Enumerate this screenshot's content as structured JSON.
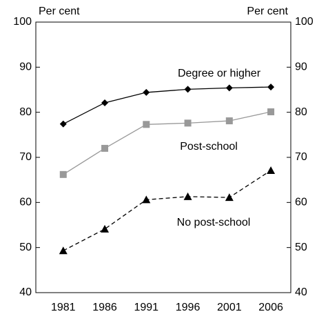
{
  "chart_data": {
    "type": "line",
    "left_axis_label": "Per cent",
    "right_axis_label": "Per cent",
    "x": [
      1981,
      1986,
      1991,
      1996,
      2001,
      2006
    ],
    "xlim": [
      1977.7,
      2008.4
    ],
    "xticks": [
      1981,
      1986,
      1991,
      1996,
      2001,
      2006
    ],
    "ylim": [
      40,
      100
    ],
    "yticks": [
      40,
      50,
      60,
      70,
      80,
      90,
      100
    ],
    "y2lim": [
      40,
      100
    ],
    "y2ticks": [
      40,
      50,
      60,
      70,
      80,
      90,
      100
    ],
    "series": [
      {
        "name": "Degree or higher",
        "color": "#000000",
        "marker": "diamond",
        "dashed": false,
        "values": [
          77.4,
          82.1,
          84.4,
          85.1,
          85.4,
          85.6
        ]
      },
      {
        "name": "Post-school",
        "color": "#999999",
        "marker": "square",
        "dashed": false,
        "values": [
          66.2,
          72.0,
          77.3,
          77.6,
          78.1,
          80.1
        ]
      },
      {
        "name": "No post-school",
        "color": "#000000",
        "marker": "triangle",
        "dashed": true,
        "values": [
          49.3,
          54.1,
          60.6,
          61.3,
          61.1,
          67.1
        ]
      }
    ]
  }
}
